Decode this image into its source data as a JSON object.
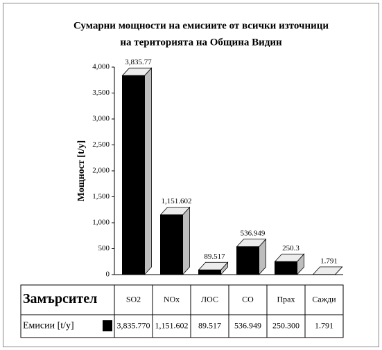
{
  "chart_data": {
    "type": "bar3d",
    "title": "Сумарни мощности на емисиите от всички източници",
    "subtitle": "на територията на Община Видин",
    "ylabel": "Мощност [t/y]",
    "xlabel": "Замърсител",
    "categories": [
      "SO2",
      "NOx",
      "ЛОС",
      "CO",
      "Прах",
      "Сажди"
    ],
    "series": [
      {
        "name": "Емисии [t/y]",
        "color": "#000000",
        "values": [
          3835.77,
          1151.602,
          89.517,
          536.949,
          250.3,
          1.791
        ],
        "value_labels": [
          "3,835.77",
          "1,151.602",
          "89.517",
          "536.949",
          "250.3",
          "1.791"
        ],
        "table_labels": [
          "3,835.770",
          "1,151.602",
          "89.517",
          "536.949",
          "250.300",
          "1.791"
        ]
      }
    ],
    "ylim": [
      0,
      4000
    ],
    "yticks": [
      0,
      500,
      {
        "value": 1000,
        "label": "1,000"
      },
      {
        "value": 1500,
        "label": "1,500"
      },
      {
        "value": 2000,
        "label": "2,000"
      },
      {
        "value": 2500,
        "label": "2,500"
      },
      {
        "value": 3000,
        "label": "3,000"
      },
      {
        "value": 3500,
        "label": "3,500"
      },
      {
        "value": 4000,
        "label": "4,000"
      }
    ],
    "grid": false
  }
}
